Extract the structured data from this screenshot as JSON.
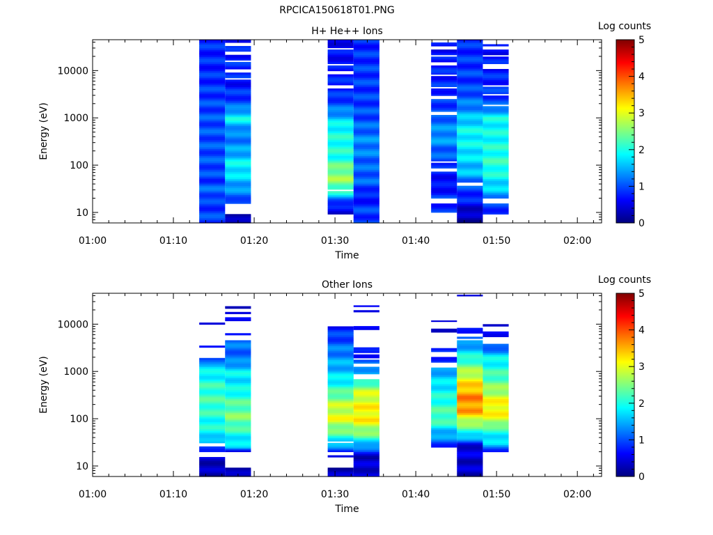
{
  "figure": {
    "title": "RPCICA150618T01.PNG"
  },
  "colors": {
    "background": "#ffffff",
    "axis": "#000000",
    "colormap": [
      "#00007f",
      "#0000ff",
      "#0080ff",
      "#00ffff",
      "#80ff80",
      "#ffff00",
      "#ff8000",
      "#ff0000",
      "#7f0000"
    ]
  },
  "chart_data": [
    {
      "type": "heatmap",
      "title": "H+ He++ Ions",
      "xlabel": "Time",
      "ylabel": "Energy (eV)",
      "y_scale": "log",
      "ylim": [
        6,
        45000
      ],
      "xlim": [
        "01:00",
        "02:03"
      ],
      "x_ticks": [
        "01:00",
        "01:10",
        "01:20",
        "01:30",
        "01:40",
        "01:50",
        "02:00"
      ],
      "y_ticks": [
        "10",
        "100",
        "1000",
        "10000"
      ],
      "colorbar": {
        "label": "Log counts",
        "range": [
          0,
          5
        ],
        "ticks": [
          "0",
          "1",
          "2",
          "3",
          "4",
          "5"
        ]
      },
      "columns": [
        {
          "start": "01:13:12",
          "end": "01:16:24",
          "profile": [
            [
              6,
              0.9
            ],
            [
              8,
              0.9
            ],
            [
              10,
              1.0
            ],
            [
              15,
              0.8
            ],
            [
              20,
              1.0
            ],
            [
              30,
              1.1
            ],
            [
              50,
              0.9
            ],
            [
              100,
              1.0
            ],
            [
              300,
              1.0
            ],
            [
              1000,
              1.0
            ],
            [
              3000,
              0.9
            ],
            [
              10000,
              0.8
            ],
            [
              45000,
              0.8
            ]
          ],
          "gaps": []
        },
        {
          "start": "01:16:24",
          "end": "01:19:36",
          "profile": [
            [
              6,
              0.2
            ],
            [
              9,
              0.2
            ],
            [
              20,
              1.1
            ],
            [
              30,
              1.3
            ],
            [
              50,
              1.6
            ],
            [
              100,
              1.9
            ],
            [
              200,
              1.4
            ],
            [
              500,
              1.2
            ],
            [
              1000,
              1.9
            ],
            [
              2000,
              1.0
            ],
            [
              5000,
              0.7
            ],
            [
              10000,
              0.8
            ],
            [
              45000,
              0.7
            ]
          ],
          "gaps": [
            [
              9,
              15
            ],
            [
              32000,
              41000
            ],
            [
              22000,
              26000
            ],
            [
              15000,
              17000
            ],
            [
              9500,
              11000
            ],
            [
              6500,
              7300
            ]
          ]
        },
        {
          "start": "01:29:06",
          "end": "01:32:18",
          "profile": [
            [
              6,
              0.3
            ],
            [
              10,
              0.5
            ],
            [
              15,
              0.7
            ],
            [
              20,
              1.3
            ],
            [
              30,
              2.2
            ],
            [
              50,
              2.6
            ],
            [
              80,
              2.5
            ],
            [
              150,
              2.0
            ],
            [
              300,
              2.0
            ],
            [
              700,
              1.9
            ],
            [
              1500,
              1.2
            ],
            [
              3000,
              0.8
            ],
            [
              10000,
              0.7
            ],
            [
              45000,
              0.6
            ]
          ],
          "gaps": [
            [
              6,
              9.5
            ],
            [
              27000,
              31000
            ],
            [
              13000,
              14500
            ],
            [
              8500,
              9800
            ],
            [
              4200,
              4800
            ],
            [
              28,
              30
            ]
          ]
        },
        {
          "start": "01:32:18",
          "end": "01:35:30",
          "profile": [
            [
              6,
              0.9
            ],
            [
              15,
              0.9
            ],
            [
              20,
              0.6
            ],
            [
              30,
              0.9
            ],
            [
              50,
              1.1
            ],
            [
              100,
              1.1
            ],
            [
              300,
              1.3
            ],
            [
              1000,
              1.0
            ],
            [
              3000,
              0.9
            ],
            [
              10000,
              0.9
            ],
            [
              45000,
              0.8
            ]
          ],
          "gaps": []
        },
        {
          "start": "01:41:54",
          "end": "01:45:06",
          "profile": [
            [
              6,
              0.3
            ],
            [
              10,
              0.8
            ],
            [
              20,
              0.9
            ],
            [
              40,
              0.6
            ],
            [
              100,
              0.9
            ],
            [
              200,
              1.1
            ],
            [
              400,
              1.4
            ],
            [
              800,
              1.2
            ],
            [
              2000,
              0.9
            ],
            [
              5000,
              0.8
            ],
            [
              45000,
              0.6
            ]
          ],
          "gaps": [
            [
              6,
              10
            ],
            [
              15,
              20
            ],
            [
              30,
              32
            ],
            [
              75,
              85
            ],
            [
              110,
              118
            ],
            [
              1200,
              1400
            ],
            [
              2600,
              3000
            ],
            [
              4200,
              4700
            ],
            [
              7500,
              8500
            ],
            [
              13000,
              15000
            ],
            [
              19000,
              22000
            ],
            [
              29000,
              32000
            ],
            [
              39000,
              45000
            ]
          ]
        },
        {
          "start": "01:45:06",
          "end": "01:48:18",
          "profile": [
            [
              6,
              0.2
            ],
            [
              10,
              0.3
            ],
            [
              20,
              0.8
            ],
            [
              40,
              1.0
            ],
            [
              60,
              1.5
            ],
            [
              100,
              1.6
            ],
            [
              200,
              1.8
            ],
            [
              500,
              1.9
            ],
            [
              1000,
              1.6
            ],
            [
              2000,
              1.2
            ],
            [
              5000,
              0.9
            ],
            [
              10000,
              0.9
            ],
            [
              45000,
              0.8
            ]
          ],
          "gaps": [
            [
              36,
              42
            ]
          ]
        },
        {
          "start": "01:48:18",
          "end": "01:51:30",
          "profile": [
            [
              6,
              0.9
            ],
            [
              10,
              0.9
            ],
            [
              15,
              0.9
            ],
            [
              20,
              1.3
            ],
            [
              30,
              1.6
            ],
            [
              60,
              1.9
            ],
            [
              100,
              2.1
            ],
            [
              200,
              2.0
            ],
            [
              500,
              1.9
            ],
            [
              1000,
              1.9
            ],
            [
              2000,
              1.0
            ],
            [
              5000,
              0.8
            ],
            [
              45000,
              0.6
            ]
          ],
          "gaps": [
            [
              6,
              9.5
            ],
            [
              15,
              20
            ],
            [
              1800,
              2000
            ],
            [
              2900,
              3200
            ],
            [
              4600,
              5000
            ],
            [
              11000,
              13500
            ],
            [
              19000,
              22000
            ],
            [
              27000,
              32000
            ],
            [
              36000,
              45000
            ]
          ]
        }
      ]
    },
    {
      "type": "heatmap",
      "title": "Other Ions",
      "xlabel": "Time",
      "ylabel": "Energy (eV)",
      "y_scale": "log",
      "ylim": [
        6,
        45000
      ],
      "xlim": [
        "01:00",
        "02:03"
      ],
      "x_ticks": [
        "01:00",
        "01:10",
        "01:20",
        "01:30",
        "01:40",
        "01:50",
        "02:00"
      ],
      "y_ticks": [
        "10",
        "100",
        "1000",
        "10000"
      ],
      "colorbar": {
        "label": "Log counts",
        "range": [
          0,
          5
        ],
        "ticks": [
          "0",
          "1",
          "2",
          "3",
          "4",
          "5"
        ]
      },
      "columns": [
        {
          "start": "01:13:12",
          "end": "01:16:24",
          "profile": [
            [
              6,
              0.2
            ],
            [
              15,
              0.4
            ],
            [
              20,
              0.8
            ],
            [
              30,
              1.3
            ],
            [
              50,
              1.9
            ],
            [
              100,
              2.0
            ],
            [
              200,
              2.2
            ],
            [
              500,
              2.1
            ],
            [
              1000,
              1.8
            ],
            [
              1500,
              1.6
            ],
            [
              2000,
              0.6
            ],
            [
              3500,
              0.8
            ],
            [
              20000,
              0.4
            ]
          ],
          "gaps": [
            [
              15,
              20
            ],
            [
              25,
              30
            ],
            [
              2000,
              3200
            ],
            [
              3600,
              7000
            ],
            [
              7300,
              8800
            ],
            [
              9200,
              10000
            ],
            [
              10400,
              20500
            ]
          ]
        },
        {
          "start": "01:16:24",
          "end": "01:19:36",
          "profile": [
            [
              6,
              0.2
            ],
            [
              9,
              0.2
            ],
            [
              20,
              0.5
            ],
            [
              25,
              1.6
            ],
            [
              50,
              2.0
            ],
            [
              100,
              2.5
            ],
            [
              200,
              2.3
            ],
            [
              500,
              1.8
            ],
            [
              1000,
              1.8
            ],
            [
              2000,
              1.1
            ],
            [
              3000,
              1.2
            ],
            [
              4500,
              1.1
            ],
            [
              6000,
              0.7
            ],
            [
              24000,
              0.4
            ]
          ],
          "gaps": [
            [
              9,
              20
            ],
            [
              4600,
              6000
            ],
            [
              6300,
              11500
            ],
            [
              14000,
              17000
            ],
            [
              18500,
              21500
            ]
          ]
        },
        {
          "start": "01:29:06",
          "end": "01:32:18",
          "profile": [
            [
              6,
              0.3
            ],
            [
              9,
              0.3
            ],
            [
              20,
              0.7
            ],
            [
              30,
              1.6
            ],
            [
              50,
              2.3
            ],
            [
              100,
              3.0
            ],
            [
              200,
              2.8
            ],
            [
              500,
              2.0
            ],
            [
              1000,
              1.6
            ],
            [
              3000,
              1.2
            ],
            [
              9000,
              0.7
            ]
          ],
          "gaps": [
            [
              9,
              15
            ],
            [
              17,
              18
            ],
            [
              19,
              20
            ],
            [
              25,
              27
            ],
            [
              30,
              34
            ]
          ]
        },
        {
          "start": "01:32:18",
          "end": "01:35:30",
          "profile": [
            [
              6,
              0.5
            ],
            [
              15,
              0.3
            ],
            [
              20,
              0.8
            ],
            [
              30,
              1.6
            ],
            [
              50,
              2.5
            ],
            [
              100,
              3.2
            ],
            [
              200,
              3.1
            ],
            [
              400,
              2.8
            ],
            [
              700,
              1.9
            ],
            [
              1500,
              1.1
            ],
            [
              2500,
              0.6
            ],
            [
              3000,
              0.6
            ],
            [
              9000,
              0.8
            ],
            [
              25000,
              0.4
            ]
          ],
          "gaps": [
            [
              700,
              900
            ],
            [
              1300,
              1500
            ],
            [
              1700,
              1900
            ],
            [
              2200,
              2500
            ],
            [
              3200,
              7800
            ],
            [
              9200,
              18500
            ],
            [
              20000,
              23000
            ]
          ]
        },
        {
          "start": "01:41:54",
          "end": "01:45:06",
          "profile": [
            [
              25,
              0.8
            ],
            [
              40,
              1.3
            ],
            [
              60,
              1.7
            ],
            [
              100,
              2.3
            ],
            [
              200,
              2.1
            ],
            [
              500,
              1.8
            ],
            [
              1000,
              1.5
            ],
            [
              2000,
              0.8
            ],
            [
              12000,
              0.4
            ]
          ],
          "gaps": [
            [
              1250,
              1500
            ],
            [
              2100,
              2600
            ],
            [
              3000,
              7000
            ],
            [
              7800,
              11500
            ]
          ]
        },
        {
          "start": "01:45:06",
          "end": "01:48:18",
          "profile": [
            [
              6,
              0.3
            ],
            [
              30,
              0.5
            ],
            [
              40,
              1.6
            ],
            [
              80,
              2.6
            ],
            [
              150,
              3.6
            ],
            [
              300,
              3.7
            ],
            [
              600,
              3.2
            ],
            [
              1000,
              2.7
            ],
            [
              2000,
              2.0
            ],
            [
              3000,
              1.6
            ],
            [
              5000,
              1.1
            ],
            [
              8000,
              0.6
            ],
            [
              42000,
              0.4
            ]
          ],
          "gaps": [
            [
              4600,
              5000
            ],
            [
              5300,
              6500
            ],
            [
              8200,
              38000
            ]
          ]
        },
        {
          "start": "01:48:18",
          "end": "01:51:30",
          "profile": [
            [
              20,
              0.8
            ],
            [
              30,
              1.6
            ],
            [
              60,
              2.1
            ],
            [
              100,
              3.0
            ],
            [
              200,
              3.2
            ],
            [
              500,
              2.5
            ],
            [
              1000,
              2.1
            ],
            [
              2000,
              1.8
            ],
            [
              3500,
              1.0
            ],
            [
              10000,
              0.4
            ]
          ],
          "gaps": [
            [
              4000,
              5500
            ],
            [
              6800,
              8800
            ]
          ]
        }
      ]
    }
  ]
}
